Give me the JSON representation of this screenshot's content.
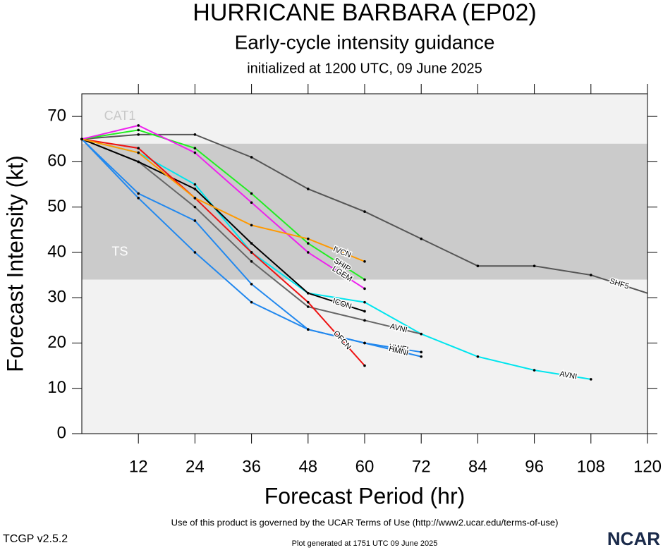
{
  "chart_data": {
    "type": "line",
    "title": "HURRICANE BARBARA (EP02)",
    "subtitle": "Early-cycle intensity guidance",
    "initialized": "initialized at 1200 UTC, 09 June 2025",
    "x_label": "Forecast Period (hr)",
    "y_label": "Forecast Intensity (kt)",
    "xlim": [
      0,
      120
    ],
    "ylim": [
      0,
      75
    ],
    "xticks": [
      12,
      24,
      36,
      48,
      60,
      72,
      84,
      96,
      108,
      120
    ],
    "yticks": [
      0,
      10,
      20,
      30,
      40,
      50,
      60,
      70
    ],
    "bands": [
      {
        "label": "TS",
        "min": 34,
        "max": 64,
        "color": "#cbcbcb"
      },
      {
        "label": "CAT1",
        "min": 64,
        "max": 83,
        "color": "#f2f2f2"
      }
    ],
    "x": [
      0,
      12,
      24,
      36,
      48,
      60,
      72,
      84,
      96,
      108,
      120
    ],
    "series": [
      {
        "name": "SHF5",
        "color": "#555555",
        "values": [
          65,
          66,
          66,
          61,
          54,
          49,
          43,
          37,
          37,
          35,
          31
        ]
      },
      {
        "name": "AVNI",
        "color": "#00e5ee",
        "values": [
          65,
          62,
          55,
          40,
          31,
          29,
          22,
          17,
          14,
          12,
          null
        ]
      },
      {
        "name": "AVNI",
        "color": "#666666",
        "values": [
          65,
          60,
          50,
          38,
          28,
          25,
          22,
          null,
          null,
          null,
          null
        ]
      },
      {
        "name": "ICON",
        "color": "#000000",
        "values": [
          65,
          60,
          54,
          42,
          31,
          27,
          null,
          null,
          null,
          null,
          null
        ]
      },
      {
        "name": "OFCN",
        "color": "#ee1111",
        "values": [
          65,
          63,
          52,
          40,
          29,
          15,
          null,
          null,
          null,
          null,
          null
        ]
      },
      {
        "name": "HWFI",
        "color": "#2288ee",
        "values": [
          65,
          53,
          47,
          33,
          23,
          20,
          18,
          null,
          null,
          null,
          null
        ]
      },
      {
        "name": "HMNI",
        "color": "#2288ee",
        "values": [
          65,
          52,
          40,
          29,
          23,
          20,
          17,
          null,
          null,
          null,
          null
        ]
      },
      {
        "name": "SHIP",
        "color": "#22ee22",
        "values": [
          65,
          67,
          63,
          53,
          42,
          34,
          null,
          null,
          null,
          null,
          null
        ]
      },
      {
        "name": "LGEM",
        "color": "#ee22ee",
        "values": [
          65,
          68,
          62,
          51,
          40,
          32,
          null,
          null,
          null,
          null,
          null
        ]
      },
      {
        "name": "IVCN",
        "color": "#ff9900",
        "values": [
          65,
          62,
          52,
          46,
          43,
          38,
          null,
          null,
          null,
          null,
          null
        ]
      }
    ],
    "footer_terms": "Use of this product is governed by the UCAR Terms of Use (http://www2.ucar.edu/terms-of-use)",
    "version": "TCGP v2.5.2",
    "generated": "Plot generated at 1751 UTC   09 June 2025",
    "logo": "NCAR"
  }
}
